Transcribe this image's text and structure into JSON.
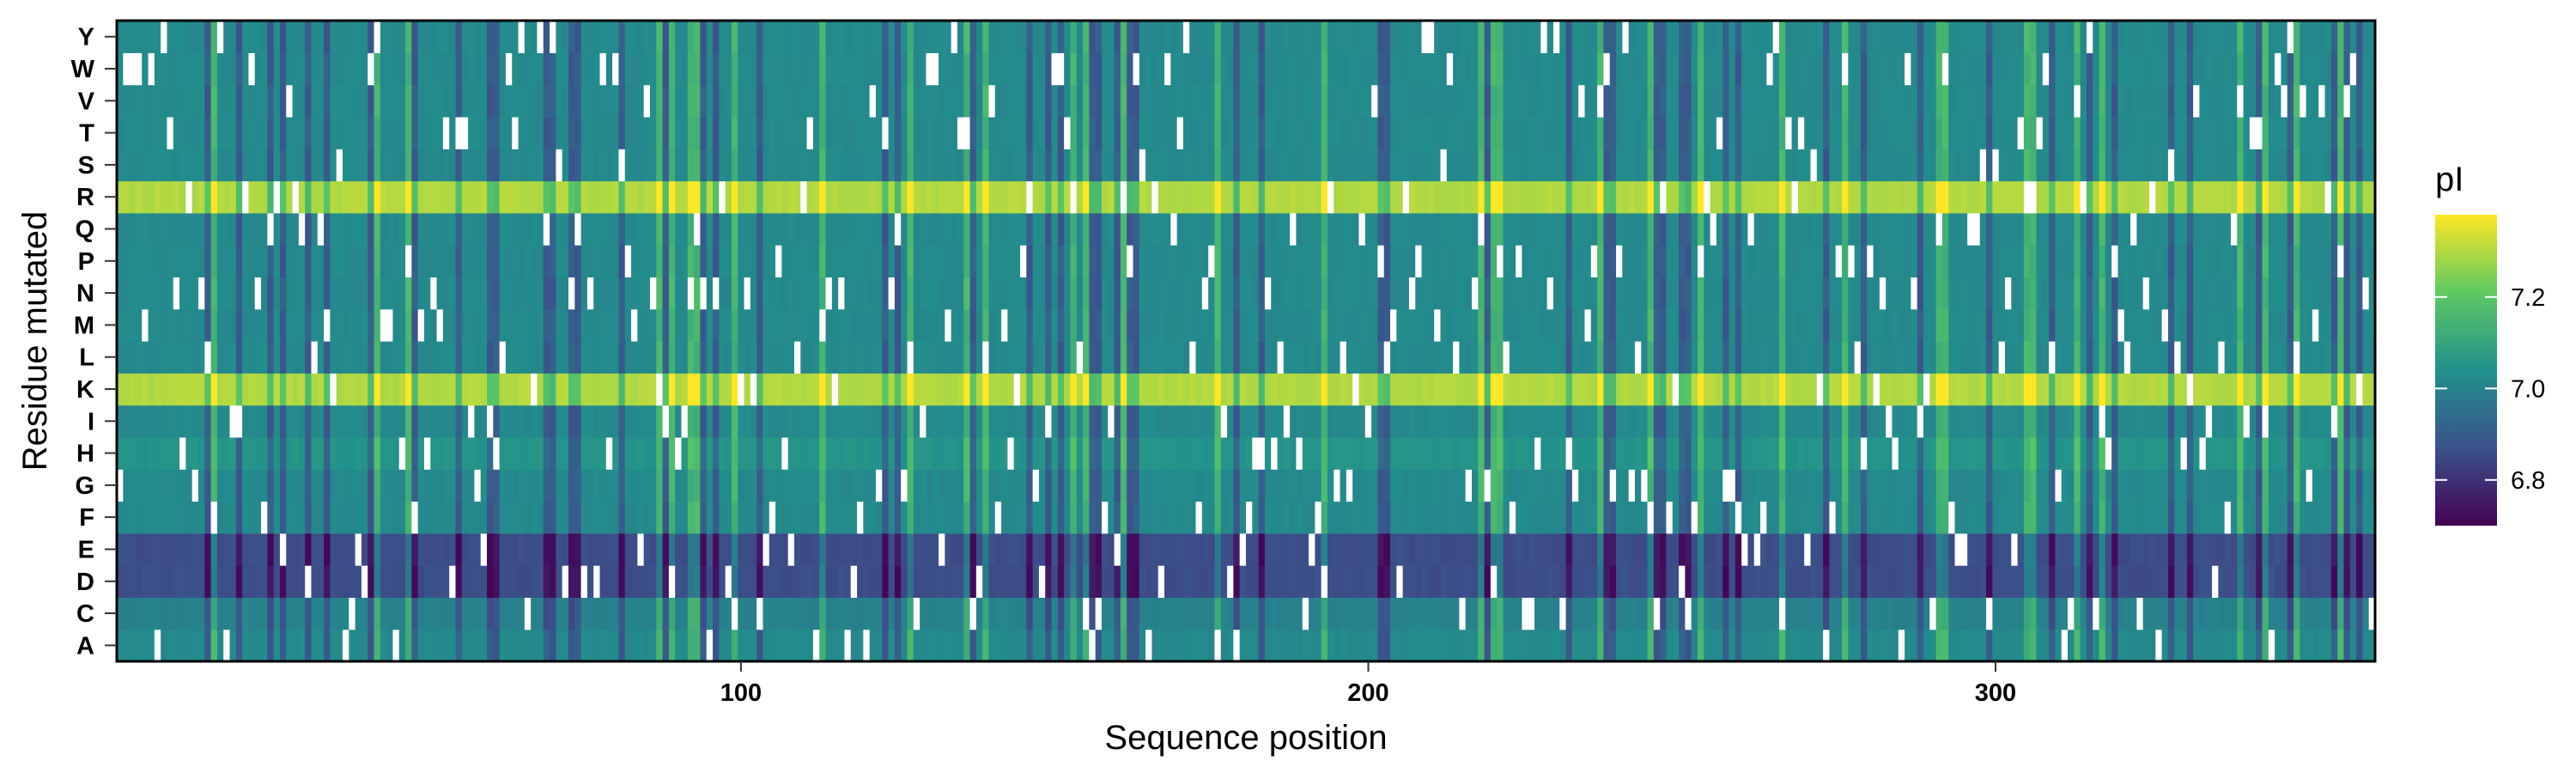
{
  "chart_data": {
    "type": "heatmap",
    "title": "",
    "xlabel": "Sequence position",
    "ylabel": "Residue mutated",
    "x_range": [
      1,
      360
    ],
    "x_ticks": [
      100,
      200,
      300
    ],
    "y_categories": [
      "A",
      "C",
      "D",
      "E",
      "F",
      "G",
      "H",
      "I",
      "K",
      "L",
      "M",
      "N",
      "P",
      "Q",
      "R",
      "S",
      "T",
      "V",
      "W",
      "Y"
    ],
    "row_base_pI": {
      "A": 7.02,
      "C": 7.0,
      "D": 6.86,
      "E": 6.86,
      "F": 7.02,
      "G": 7.02,
      "H": 7.05,
      "I": 7.02,
      "K": 7.3,
      "L": 7.02,
      "M": 7.02,
      "N": 7.02,
      "P": 7.02,
      "Q": 7.02,
      "R": 7.3,
      "S": 7.02,
      "T": 7.02,
      "V": 7.02,
      "W": 7.02,
      "Y": 7.02
    },
    "missing_cells": "white cells mark the wild-type residue at each position (no value)",
    "colorbar": {
      "title": "pI",
      "ticks": [
        6.8,
        7.0,
        7.2
      ],
      "range": [
        6.7,
        7.38
      ],
      "colormap": "viridis",
      "colors": [
        "#440154",
        "#3b528b",
        "#21918c",
        "#5ec962",
        "#fde725"
      ]
    },
    "grid": false,
    "legend_position": "right"
  }
}
